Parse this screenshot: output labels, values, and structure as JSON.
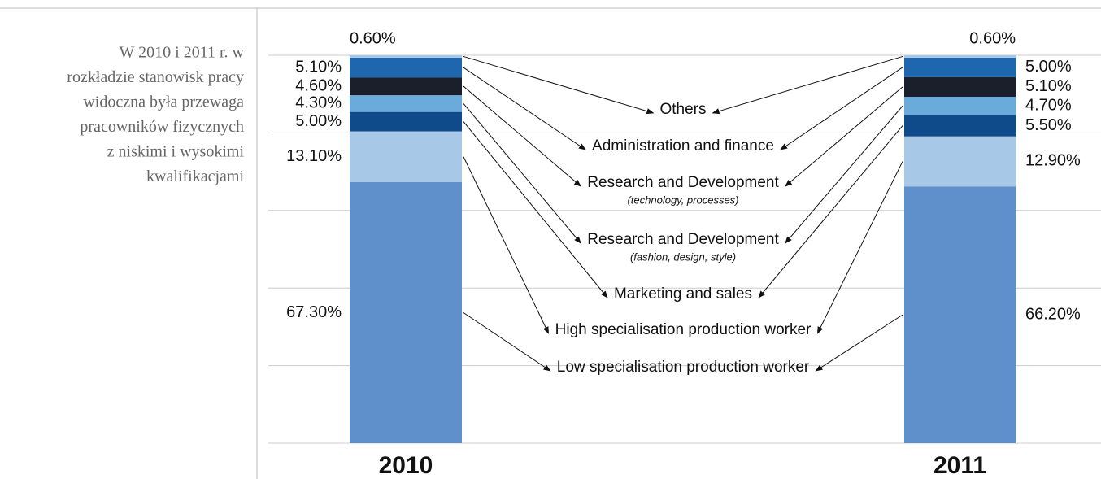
{
  "sidebar_lines": [
    "W 2010 i 2011 r. w",
    "rozkładzie stanowisk pracy",
    "widoczna była przewaga",
    "pracowników fizycznych",
    "z niskimi i wysokimi",
    "kwalifikacjami"
  ],
  "chart_data": {
    "type": "stacked_bar",
    "categories": [
      "2010",
      "2011"
    ],
    "ylim": [
      0,
      100
    ],
    "yticks": [
      0,
      20,
      40,
      60,
      80,
      100
    ],
    "grid": true,
    "series": [
      {
        "name": "Low specialisation production worker",
        "color": "#6090cc",
        "values": [
          67.3,
          66.2
        ],
        "value_labels": [
          "67.30%",
          "66.20%"
        ]
      },
      {
        "name": "High specialisation production worker",
        "color": "#a8c8e8",
        "values": [
          13.1,
          12.9
        ],
        "value_labels": [
          "13.10%",
          "12.90%"
        ]
      },
      {
        "name": "Marketing and sales",
        "color": "#0f4a8a",
        "values": [
          5.0,
          5.5
        ],
        "value_labels": [
          "5.00%",
          "5.50%"
        ]
      },
      {
        "name": "Research and Development",
        "subname": "(fashion, design, style)",
        "color": "#6aabdc",
        "values": [
          4.3,
          4.7
        ],
        "value_labels": [
          "4.30%",
          "4.70%"
        ]
      },
      {
        "name": "Research and Development",
        "subname": "(technology, processes)",
        "color": "#1a1f2b",
        "values": [
          4.6,
          5.1
        ],
        "value_labels": [
          "4.60%",
          "5.10%"
        ]
      },
      {
        "name": "Administration and finance",
        "color": "#1e66ad",
        "values": [
          5.1,
          5.0
        ],
        "value_labels": [
          "5.10%",
          "5.00%"
        ]
      },
      {
        "name": "Others",
        "color": "#a8c8e8",
        "values": [
          0.6,
          0.6
        ],
        "value_labels": [
          "0.60%",
          "0.60%"
        ]
      }
    ]
  }
}
